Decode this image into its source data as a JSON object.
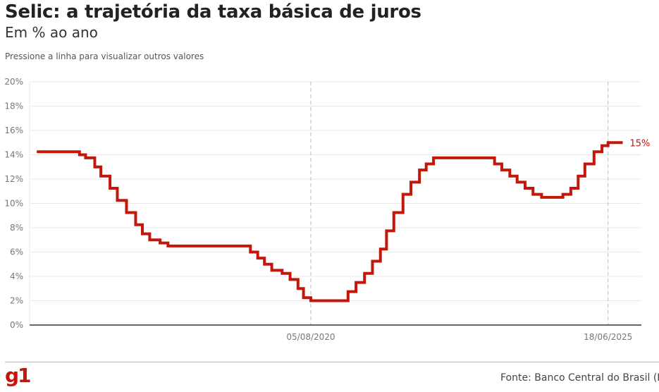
{
  "header": {
    "title": "Selic: a trajetória da taxa básica de juros",
    "subtitle": "Em % ao ano",
    "hint": "Pressione a linha para visualizar outros valores"
  },
  "footer": {
    "logo": "g1",
    "source": "Fonte: Banco Central do Brasil (BCB)"
  },
  "colors": {
    "line": "#c4170c",
    "grid": "#e8e8e8",
    "axis": "#333333"
  },
  "chart_data": {
    "type": "line",
    "step": true,
    "title": "Selic: a trajetória da taxa básica de juros",
    "ylabel": "Em % ao ano",
    "ylim": [
      0,
      20
    ],
    "xlim": [
      2016.1,
      2025.7
    ],
    "yticks": [
      0,
      2,
      4,
      6,
      8,
      10,
      12,
      14,
      16,
      18,
      20
    ],
    "ytick_labels": [
      "0%",
      "2%",
      "4%",
      "6%",
      "8%",
      "10%",
      "12%",
      "14%",
      "16%",
      "18%",
      "20%"
    ],
    "xticks": [
      {
        "t": 2020.59,
        "label": "05/08/2020"
      },
      {
        "t": 2025.46,
        "label": "18/06/2025"
      }
    ],
    "end_label": "15%",
    "points": [
      [
        2016.1,
        14.25
      ],
      [
        2016.8,
        14.0
      ],
      [
        2016.9,
        13.75
      ],
      [
        2017.05,
        13.0
      ],
      [
        2017.15,
        12.25
      ],
      [
        2017.3,
        11.25
      ],
      [
        2017.42,
        10.25
      ],
      [
        2017.57,
        9.25
      ],
      [
        2017.72,
        8.25
      ],
      [
        2017.83,
        7.5
      ],
      [
        2017.95,
        7.0
      ],
      [
        2018.12,
        6.75
      ],
      [
        2018.25,
        6.5
      ],
      [
        2019.6,
        6.0
      ],
      [
        2019.72,
        5.5
      ],
      [
        2019.83,
        5.0
      ],
      [
        2019.95,
        4.5
      ],
      [
        2020.12,
        4.25
      ],
      [
        2020.25,
        3.75
      ],
      [
        2020.38,
        3.0
      ],
      [
        2020.47,
        2.25
      ],
      [
        2020.59,
        2.0
      ],
      [
        2021.2,
        2.75
      ],
      [
        2021.33,
        3.5
      ],
      [
        2021.47,
        4.25
      ],
      [
        2021.6,
        5.25
      ],
      [
        2021.73,
        6.25
      ],
      [
        2021.83,
        7.75
      ],
      [
        2021.95,
        9.25
      ],
      [
        2022.1,
        10.75
      ],
      [
        2022.23,
        11.75
      ],
      [
        2022.37,
        12.75
      ],
      [
        2022.48,
        13.25
      ],
      [
        2022.6,
        13.75
      ],
      [
        2023.6,
        13.25
      ],
      [
        2023.72,
        12.75
      ],
      [
        2023.85,
        12.25
      ],
      [
        2023.97,
        11.75
      ],
      [
        2024.1,
        11.25
      ],
      [
        2024.23,
        10.75
      ],
      [
        2024.37,
        10.5
      ],
      [
        2024.72,
        10.75
      ],
      [
        2024.85,
        11.25
      ],
      [
        2024.97,
        12.25
      ],
      [
        2025.08,
        13.25
      ],
      [
        2025.23,
        14.25
      ],
      [
        2025.36,
        14.75
      ],
      [
        2025.46,
        15.0
      ],
      [
        2025.7,
        15.0
      ]
    ]
  }
}
